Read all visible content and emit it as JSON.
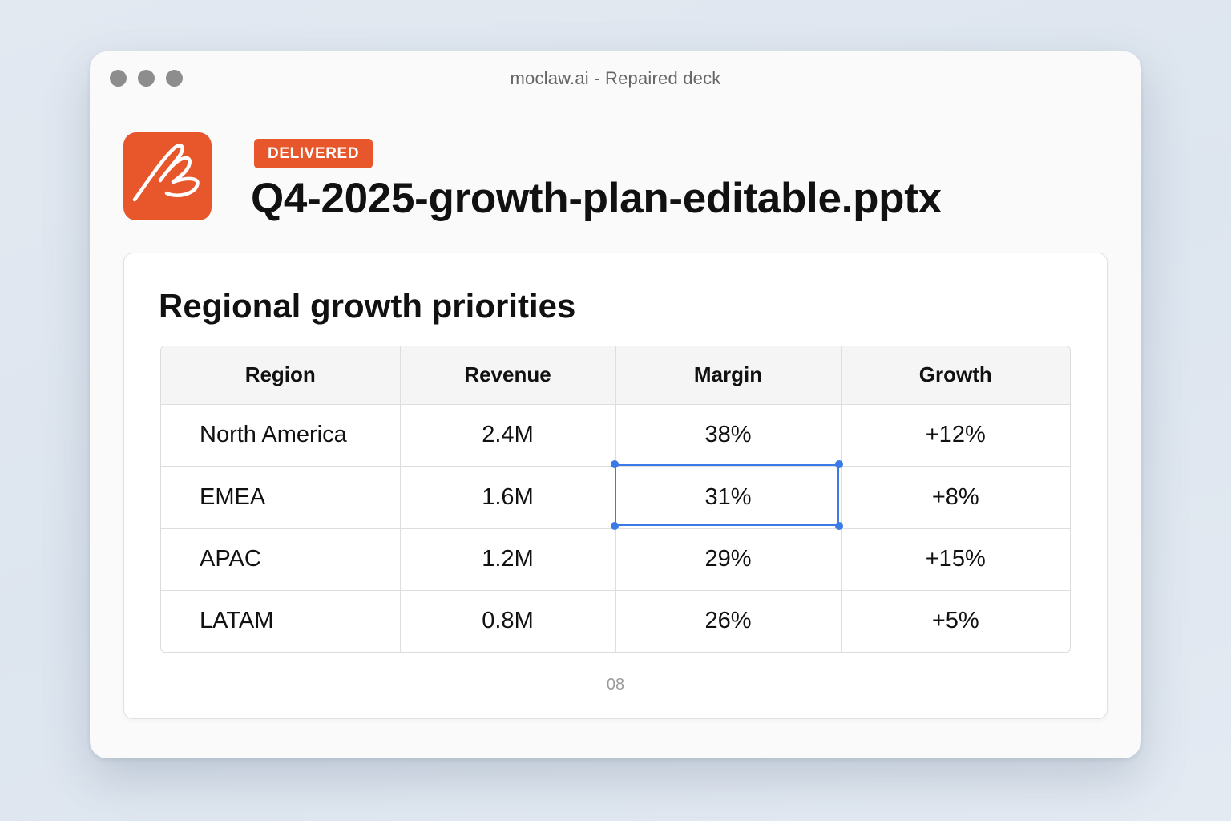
{
  "window": {
    "title": "moclaw.ai - Repaired deck"
  },
  "file": {
    "status_badge": "DELIVERED",
    "name": "Q4-2025-growth-plan-editable.pptx",
    "icon": "moclaw-logo-icon",
    "accent_color": "#e8572b"
  },
  "slide": {
    "title": "Regional growth priorities",
    "page_number": "08",
    "table": {
      "headers": [
        "Region",
        "Revenue",
        "Margin",
        "Growth"
      ],
      "rows": [
        [
          "North America",
          "2.4M",
          "38%",
          "+12%"
        ],
        [
          "EMEA",
          "1.6M",
          "31%",
          "+8%"
        ],
        [
          "APAC",
          "1.2M",
          "29%",
          "+15%"
        ],
        [
          "LATAM",
          "0.8M",
          "26%",
          "+5%"
        ]
      ],
      "selected_cell": {
        "row": 1,
        "column": 2
      },
      "selection_color": "#3b7be8"
    }
  }
}
